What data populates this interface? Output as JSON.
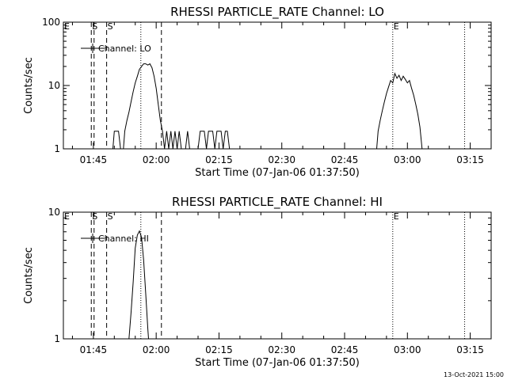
{
  "chart_data": [
    {
      "type": "line",
      "title": "RHESSI PARTICLE_RATE Channel: LO",
      "xlabel": "Start Time (07-Jan-06 01:37:50)",
      "ylabel": "Counts/sec",
      "yscale": "log",
      "ylim": [
        1,
        100
      ],
      "xlim": [
        "01:37:50",
        "03:20:00"
      ],
      "x_ticks": [
        "01:45",
        "02:00",
        "02:15",
        "02:30",
        "02:45",
        "03:00",
        "03:15"
      ],
      "y_ticks": [
        "1",
        "10",
        "100"
      ],
      "legend": "top-left",
      "series": [
        {
          "name": "Channel: LO",
          "color": "#000000",
          "points": [
            [
              "01:49:40",
              1
            ],
            [
              "01:50:00",
              1.9
            ],
            [
              "01:50:30",
              1.9
            ],
            [
              "01:51:00",
              1.9
            ],
            [
              "01:51:30",
              1
            ],
            [
              "01:52:10",
              1
            ],
            [
              "01:52:30",
              1.9
            ],
            [
              "01:53:00",
              2.8
            ],
            [
              "01:53:30",
              3.8
            ],
            [
              "01:54:00",
              5.5
            ],
            [
              "01:54:30",
              8
            ],
            [
              "01:55:00",
              11
            ],
            [
              "01:55:30",
              14
            ],
            [
              "01:56:00",
              18
            ],
            [
              "01:56:30",
              20
            ],
            [
              "01:57:00",
              22
            ],
            [
              "01:57:30",
              22
            ],
            [
              "01:58:00",
              21
            ],
            [
              "01:58:30",
              22
            ],
            [
              "01:59:00",
              19
            ],
            [
              "01:59:30",
              14
            ],
            [
              "02:00:00",
              9
            ],
            [
              "02:00:30",
              5
            ],
            [
              "02:01:00",
              2.8
            ],
            [
              "02:01:30",
              1.9
            ],
            [
              "02:02:00",
              1
            ],
            [
              "02:02:30",
              1.9
            ],
            [
              "02:03:00",
              1
            ],
            [
              "02:03:30",
              1.9
            ],
            [
              "02:04:00",
              1
            ],
            [
              "02:04:30",
              1.9
            ],
            [
              "02:05:00",
              1
            ],
            [
              "02:05:30",
              1.9
            ],
            [
              "02:06:00",
              1
            ],
            [
              "02:07:00",
              1
            ],
            [
              "02:07:30",
              1.9
            ],
            [
              "02:08:00",
              1
            ],
            [
              "02:10:00",
              1
            ],
            [
              "02:10:30",
              1.9
            ],
            [
              "02:11:30",
              1.9
            ],
            [
              "02:12:00",
              1
            ],
            [
              "02:12:30",
              1.9
            ],
            [
              "02:13:30",
              1.9
            ],
            [
              "02:14:00",
              1
            ],
            [
              "02:14:30",
              1.9
            ],
            [
              "02:15:30",
              1.9
            ],
            [
              "02:16:00",
              1
            ],
            [
              "02:16:30",
              1.9
            ],
            [
              "02:17:00",
              1.9
            ],
            [
              "02:17:30",
              1
            ]
          ]
        },
        {
          "name": "",
          "color": "#000000",
          "points": [
            [
              "02:52:40",
              1
            ],
            [
              "02:53:00",
              1.9
            ],
            [
              "02:53:30",
              2.8
            ],
            [
              "02:54:00",
              4
            ],
            [
              "02:54:30",
              5.5
            ],
            [
              "02:55:00",
              7.5
            ],
            [
              "02:55:30",
              9.5
            ],
            [
              "02:56:00",
              12
            ],
            [
              "02:56:30",
              11
            ],
            [
              "02:57:00",
              15.5
            ],
            [
              "02:57:30",
              13
            ],
            [
              "02:58:00",
              14.5
            ],
            [
              "02:58:30",
              12
            ],
            [
              "02:59:00",
              14
            ],
            [
              "02:59:30",
              12.5
            ],
            [
              "03:00:00",
              11
            ],
            [
              "03:00:30",
              12
            ],
            [
              "03:01:00",
              9
            ],
            [
              "03:01:30",
              7
            ],
            [
              "03:02:00",
              5
            ],
            [
              "03:02:30",
              3.5
            ],
            [
              "03:03:00",
              2.2
            ],
            [
              "03:03:30",
              1
            ]
          ]
        }
      ],
      "markers": [
        {
          "label": "E",
          "time": "01:37:50",
          "style": "none"
        },
        {
          "label": "S",
          "time": "01:44:30",
          "style": "dashed"
        },
        {
          "label": "",
          "time": "01:45:10",
          "style": "dashed"
        },
        {
          "label": "S",
          "time": "01:48:10",
          "style": "dashed"
        },
        {
          "label": "",
          "time": "01:56:20",
          "style": "dotted"
        },
        {
          "label": "",
          "time": "02:01:15",
          "style": "dashed"
        },
        {
          "label": "E",
          "time": "02:56:30",
          "style": "dotted"
        },
        {
          "label": "",
          "time": "03:13:40",
          "style": "dotted"
        }
      ]
    },
    {
      "type": "line",
      "title": "RHESSI PARTICLE_RATE Channel: HI",
      "xlabel": "Start Time (07-Jan-06 01:37:50)",
      "ylabel": "Counts/sec",
      "yscale": "log",
      "ylim": [
        1,
        10
      ],
      "xlim": [
        "01:37:50",
        "03:20:00"
      ],
      "x_ticks": [
        "01:45",
        "02:00",
        "02:15",
        "02:30",
        "02:45",
        "03:00",
        "03:15"
      ],
      "y_ticks": [
        "1",
        "10"
      ],
      "legend": "top-left",
      "series": [
        {
          "name": "Channel: HI",
          "color": "#000000",
          "points": [
            [
              "01:53:30",
              1
            ],
            [
              "01:54:00",
              1.6
            ],
            [
              "01:54:30",
              2.8
            ],
            [
              "01:55:00",
              5.2
            ],
            [
              "01:55:30",
              6.6
            ],
            [
              "01:56:00",
              7.1
            ],
            [
              "01:56:30",
              6.3
            ],
            [
              "01:57:00",
              4.2
            ],
            [
              "01:57:30",
              2.3
            ],
            [
              "01:58:00",
              1.2
            ],
            [
              "01:58:10",
              1
            ]
          ]
        }
      ],
      "markers": [
        {
          "label": "E",
          "time": "01:37:50",
          "style": "none"
        },
        {
          "label": "S",
          "time": "01:44:30",
          "style": "dashed"
        },
        {
          "label": "",
          "time": "01:45:10",
          "style": "dashed"
        },
        {
          "label": "S",
          "time": "01:48:10",
          "style": "dashed"
        },
        {
          "label": "",
          "time": "01:56:20",
          "style": "dotted"
        },
        {
          "label": "",
          "time": "02:01:15",
          "style": "dashed"
        },
        {
          "label": "E",
          "time": "02:56:30",
          "style": "dotted"
        },
        {
          "label": "",
          "time": "03:13:40",
          "style": "dotted"
        }
      ]
    }
  ],
  "footer": {
    "date": "13-Oct-2021 15:00"
  }
}
